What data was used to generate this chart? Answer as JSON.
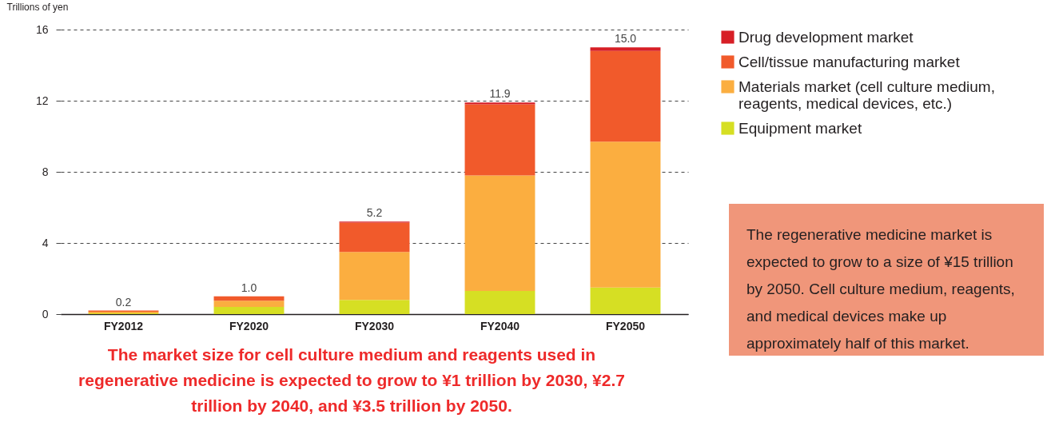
{
  "chart_data": {
    "type": "bar",
    "stacked": true,
    "ylabel": "Trillions of yen",
    "categories": [
      "FY2012",
      "FY2020",
      "FY2030",
      "FY2040",
      "FY2050"
    ],
    "series": [
      {
        "name": "Equipment market",
        "color": "#d6df23",
        "values": [
          0.05,
          0.4,
          0.8,
          1.3,
          1.5
        ]
      },
      {
        "name": "Materials market (cell culture medium, reagents, medical devices, etc.)",
        "color": "#fbae40",
        "values": [
          0.08,
          0.35,
          2.7,
          6.5,
          8.2
        ]
      },
      {
        "name": "Cell/tissue manufacturing market",
        "color": "#f15a2b",
        "values": [
          0.07,
          0.25,
          1.65,
          4.0,
          5.1
        ]
      },
      {
        "name": "Drug development market",
        "color": "#d71f26",
        "values": [
          0,
          0,
          0.05,
          0.1,
          0.2
        ]
      }
    ],
    "totals": [
      "0.2",
      "1.0",
      "5.2",
      "11.9",
      "15.0"
    ],
    "ylim": [
      0,
      16
    ],
    "yticks": [
      0,
      4,
      8,
      12,
      16
    ],
    "grid": "y",
    "legend": "top right",
    "annotations": [
      "The market size for cell culture medium and reagents used in regenerative medicine is expected to grow to ¥1 trillion by 2030, ¥2.7 trillion by 2040, and ¥3.5 trillion by 2050.",
      "The regenerative medicine market is expected to grow to a size of ¥15 trillion by 2050. Cell culture medium, reagents, and medical devices make up approximately half of this market."
    ]
  }
}
